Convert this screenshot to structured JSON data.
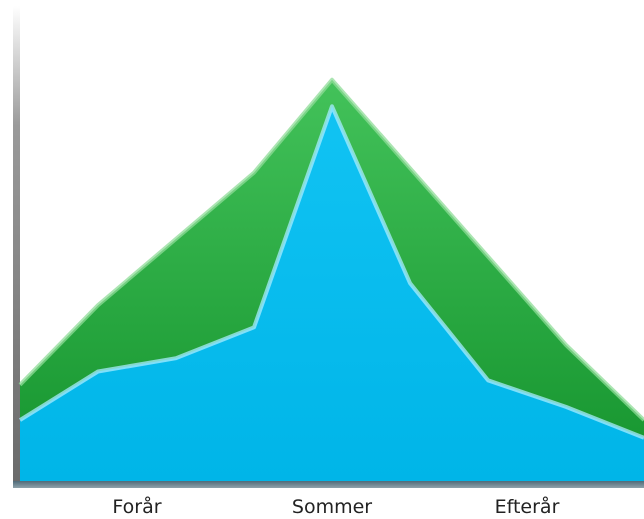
{
  "chart_data": {
    "type": "area",
    "categories": [
      "Forår",
      "Sommer",
      "Efterår"
    ],
    "x": [
      0,
      1,
      2,
      3,
      4,
      5,
      6,
      7,
      8
    ],
    "ylim": [
      0,
      100
    ],
    "grid": false,
    "legend": "none",
    "series": [
      {
        "color": "#22a83c",
        "values": [
          22,
          40,
          55,
          70,
          91,
          71,
          51,
          31,
          14
        ]
      },
      {
        "color": "#00bdf0",
        "values": [
          14,
          25,
          28,
          35,
          85,
          45,
          23,
          17,
          10
        ]
      }
    ],
    "category_positions": [
      1.5,
      4,
      6.5
    ],
    "colors": {
      "axis": "#8a8a8a",
      "baseline_shadow": "#5a6d78",
      "background": "#ffffff"
    }
  }
}
